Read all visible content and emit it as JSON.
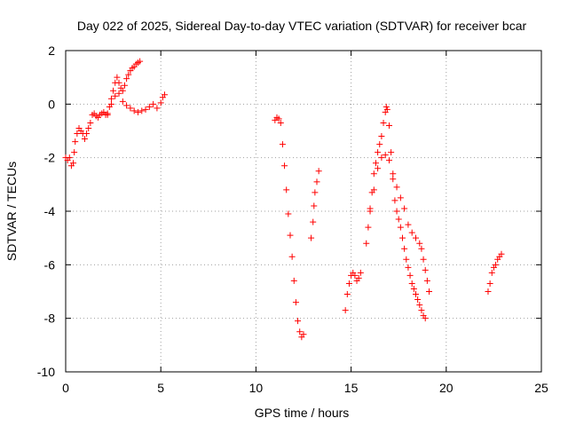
{
  "chart_data": {
    "type": "scatter",
    "title": "Day 022 of 2025, Sidereal Day-to-day VTEC variation (SDTVAR) for receiver bcar",
    "xlabel": "GPS time / hours",
    "ylabel": "SDTVAR / TECUs",
    "xlim": [
      0,
      25
    ],
    "ylim": [
      -10,
      2
    ],
    "x_ticks": [
      0,
      5,
      10,
      15,
      20,
      25
    ],
    "y_ticks": [
      -10,
      -8,
      -6,
      -4,
      -2,
      0,
      2
    ],
    "x_tick_labels": [
      "0",
      "5",
      "10",
      "15",
      "20",
      "25"
    ],
    "y_tick_labels": [
      "-10",
      "-8",
      "-6",
      "-4",
      "-2",
      "0",
      "2"
    ],
    "grid": true,
    "marker": "plus",
    "color": "#ff0000",
    "series": [
      {
        "points": [
          [
            0.0,
            -2.0
          ],
          [
            0.1,
            -2.1
          ],
          [
            0.2,
            -2.0
          ],
          [
            0.3,
            -2.3
          ],
          [
            0.4,
            -2.2
          ],
          [
            0.45,
            -1.8
          ],
          [
            0.5,
            -1.4
          ],
          [
            0.6,
            -1.1
          ],
          [
            0.7,
            -0.9
          ],
          [
            0.8,
            -1.0
          ],
          [
            0.9,
            -1.1
          ],
          [
            1.0,
            -1.3
          ],
          [
            1.1,
            -1.1
          ],
          [
            1.2,
            -0.9
          ],
          [
            1.3,
            -0.7
          ],
          [
            1.4,
            -0.4
          ],
          [
            1.5,
            -0.35
          ],
          [
            1.6,
            -0.45
          ],
          [
            1.7,
            -0.5
          ],
          [
            1.8,
            -0.4
          ],
          [
            1.9,
            -0.35
          ],
          [
            2.0,
            -0.3
          ],
          [
            2.1,
            -0.4
          ],
          [
            2.2,
            -0.35
          ],
          [
            2.3,
            -0.1
          ],
          [
            2.4,
            0.2
          ],
          [
            2.5,
            0.5
          ],
          [
            2.6,
            0.8
          ],
          [
            2.7,
            1.0
          ],
          [
            2.8,
            0.8
          ],
          [
            2.9,
            0.6
          ],
          [
            3.0,
            0.5
          ],
          [
            3.1,
            0.7
          ],
          [
            3.2,
            0.95
          ],
          [
            3.3,
            1.1
          ],
          [
            3.4,
            1.25
          ],
          [
            3.5,
            1.35
          ],
          [
            3.6,
            1.4
          ],
          [
            3.7,
            1.5
          ],
          [
            3.8,
            1.55
          ],
          [
            3.9,
            1.6
          ],
          [
            2.2,
            -0.4
          ],
          [
            2.4,
            0.0
          ],
          [
            2.6,
            0.3
          ],
          [
            2.8,
            0.4
          ],
          [
            3.0,
            0.1
          ],
          [
            3.2,
            -0.05
          ],
          [
            3.4,
            -0.15
          ],
          [
            3.6,
            -0.25
          ],
          [
            3.8,
            -0.3
          ],
          [
            4.0,
            -0.25
          ],
          [
            4.2,
            -0.2
          ],
          [
            4.4,
            -0.1
          ],
          [
            4.6,
            0.0
          ],
          [
            4.8,
            -0.15
          ],
          [
            5.0,
            0.05
          ],
          [
            5.1,
            0.25
          ],
          [
            5.2,
            0.35
          ]
        ]
      },
      {
        "points": [
          [
            11.0,
            -0.6
          ],
          [
            11.1,
            -0.5
          ],
          [
            11.2,
            -0.55
          ],
          [
            11.3,
            -0.7
          ],
          [
            11.4,
            -1.5
          ],
          [
            11.5,
            -2.3
          ],
          [
            11.6,
            -3.2
          ],
          [
            11.7,
            -4.1
          ],
          [
            11.8,
            -4.9
          ],
          [
            11.9,
            -5.7
          ],
          [
            12.0,
            -6.6
          ],
          [
            12.1,
            -7.4
          ],
          [
            12.2,
            -8.1
          ],
          [
            12.3,
            -8.5
          ],
          [
            12.4,
            -8.7
          ],
          [
            12.5,
            -8.6
          ]
        ]
      },
      {
        "points": [
          [
            12.9,
            -5.0
          ],
          [
            13.0,
            -4.4
          ],
          [
            13.05,
            -3.8
          ],
          [
            13.1,
            -3.3
          ],
          [
            13.2,
            -2.9
          ],
          [
            13.3,
            -2.5
          ]
        ]
      },
      {
        "points": [
          [
            14.7,
            -7.7
          ],
          [
            14.8,
            -7.1
          ],
          [
            14.9,
            -6.7
          ],
          [
            15.0,
            -6.4
          ],
          [
            15.1,
            -6.3
          ],
          [
            15.2,
            -6.4
          ],
          [
            15.3,
            -6.6
          ],
          [
            15.4,
            -6.5
          ],
          [
            15.5,
            -6.3
          ],
          [
            15.8,
            -5.2
          ],
          [
            15.9,
            -4.6
          ],
          [
            16.0,
            -3.9
          ],
          [
            16.1,
            -3.3
          ],
          [
            16.2,
            -2.6
          ],
          [
            16.3,
            -2.2
          ],
          [
            16.4,
            -1.8
          ],
          [
            16.5,
            -1.5
          ],
          [
            16.6,
            -1.2
          ],
          [
            16.7,
            -0.7
          ],
          [
            16.8,
            -0.3
          ],
          [
            16.85,
            -0.1
          ],
          [
            16.9,
            -0.2
          ],
          [
            17.0,
            -0.8
          ],
          [
            17.1,
            -1.8
          ],
          [
            17.2,
            -2.8
          ],
          [
            17.3,
            -3.6
          ],
          [
            17.4,
            -4.0
          ],
          [
            17.5,
            -4.3
          ],
          [
            17.6,
            -4.6
          ],
          [
            17.7,
            -5.0
          ],
          [
            17.8,
            -5.4
          ],
          [
            17.9,
            -5.8
          ],
          [
            18.0,
            -6.1
          ],
          [
            18.1,
            -6.4
          ],
          [
            18.2,
            -6.7
          ],
          [
            18.3,
            -6.9
          ],
          [
            18.4,
            -7.1
          ],
          [
            18.5,
            -7.3
          ],
          [
            18.6,
            -7.5
          ],
          [
            18.7,
            -7.7
          ],
          [
            18.8,
            -7.9
          ],
          [
            18.9,
            -8.0
          ],
          [
            16.0,
            -4.0
          ],
          [
            16.2,
            -3.2
          ],
          [
            16.4,
            -2.4
          ],
          [
            16.6,
            -2.0
          ],
          [
            16.8,
            -1.9
          ],
          [
            17.0,
            -2.1
          ],
          [
            17.2,
            -2.6
          ],
          [
            17.4,
            -3.1
          ],
          [
            17.6,
            -3.5
          ],
          [
            17.8,
            -3.9
          ],
          [
            18.0,
            -4.5
          ],
          [
            18.2,
            -4.8
          ],
          [
            18.4,
            -5.0
          ],
          [
            18.6,
            -5.2
          ],
          [
            18.7,
            -5.4
          ],
          [
            18.8,
            -5.8
          ],
          [
            18.9,
            -6.2
          ],
          [
            19.0,
            -6.6
          ],
          [
            19.1,
            -7.0
          ]
        ]
      },
      {
        "points": [
          [
            22.2,
            -7.0
          ],
          [
            22.3,
            -6.7
          ],
          [
            22.4,
            -6.3
          ],
          [
            22.5,
            -6.1
          ],
          [
            22.6,
            -6.0
          ],
          [
            22.7,
            -5.8
          ],
          [
            22.8,
            -5.7
          ],
          [
            22.9,
            -5.6
          ]
        ]
      }
    ]
  }
}
